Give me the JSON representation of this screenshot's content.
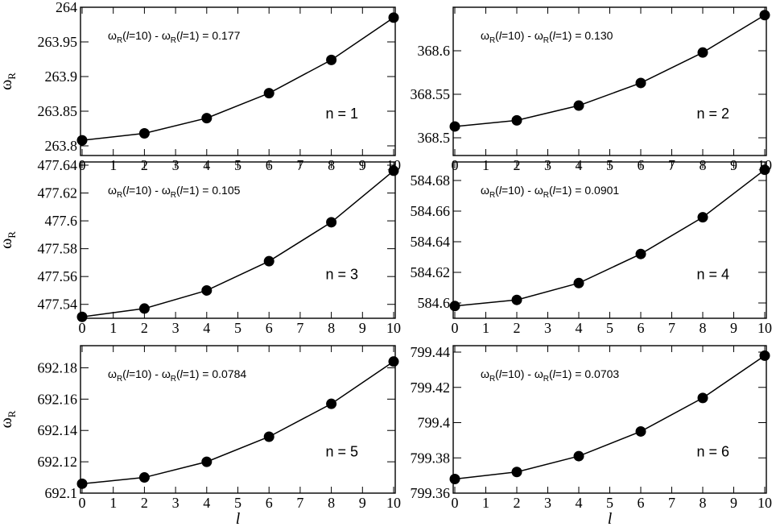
{
  "chart_data": [
    {
      "type": "line",
      "x": [
        0,
        2,
        4,
        6,
        8,
        10
      ],
      "y": [
        263.808,
        263.818,
        263.84,
        263.876,
        263.924,
        263.985
      ],
      "xlim": [
        0,
        10
      ],
      "ylim": [
        263.8,
        264
      ],
      "xticks": [
        "0",
        "1",
        "2",
        "3",
        "4",
        "5",
        "6",
        "7",
        "8",
        "9",
        "10"
      ],
      "yticks": [
        {
          "v": 263.8,
          "label": "263.8"
        },
        {
          "v": 263.85,
          "label": "263.85"
        },
        {
          "v": 263.9,
          "label": "263.9"
        },
        {
          "v": 263.95,
          "label": "263.95"
        },
        {
          "v": 264,
          "label": "264"
        }
      ],
      "ylabel": "ω",
      "ylabel_sub": "R",
      "xlabel": "",
      "annotation": {
        "pre": "ω",
        "sub1": "R",
        "arg1a": "(",
        "l1": "l",
        "arg1b": "=10) - ω",
        "sub2": "R",
        "arg2a": "(",
        "l2": "l",
        "arg2b": "=1) = 0.177"
      },
      "n_label": "n = 1"
    },
    {
      "type": "line",
      "x": [
        0,
        2,
        4,
        6,
        8,
        10
      ],
      "y": [
        368.513,
        368.52,
        368.537,
        368.563,
        368.598,
        368.641
      ],
      "xlim": [
        0,
        10
      ],
      "ylim": [
        368.5,
        368.65
      ],
      "xticks": [
        "0",
        "1",
        "2",
        "3",
        "4",
        "5",
        "6",
        "7",
        "8",
        "9",
        "10"
      ],
      "yticks": [
        {
          "v": 368.5,
          "label": "368.5"
        },
        {
          "v": 368.55,
          "label": "368.55"
        },
        {
          "v": 368.6,
          "label": "368.6"
        }
      ],
      "ylabel": "",
      "ylabel_sub": "",
      "xlabel": "",
      "annotation": {
        "pre": "ω",
        "sub1": "R",
        "arg1a": "(",
        "l1": "l",
        "arg1b": "=10) - ω",
        "sub2": "R",
        "arg2a": "(",
        "l2": "l",
        "arg2b": "=1) = 0.130"
      },
      "n_label": "n = 2"
    },
    {
      "type": "line",
      "x": [
        0,
        2,
        4,
        6,
        8,
        10
      ],
      "y": [
        477.531,
        477.537,
        477.55,
        477.571,
        477.599,
        477.636
      ],
      "xlim": [
        0,
        10
      ],
      "ylim": [
        477.53,
        477.64
      ],
      "xticks": [
        "0",
        "1",
        "2",
        "3",
        "4",
        "5",
        "6",
        "7",
        "8",
        "9",
        "10"
      ],
      "yticks": [
        {
          "v": 477.54,
          "label": "477.54"
        },
        {
          "v": 477.56,
          "label": "477.56"
        },
        {
          "v": 477.58,
          "label": "477.58"
        },
        {
          "v": 477.6,
          "label": "477.6"
        },
        {
          "v": 477.62,
          "label": "477.62"
        },
        {
          "v": 477.64,
          "label": "477.64"
        }
      ],
      "ylabel": "ω",
      "ylabel_sub": "R",
      "xlabel": "",
      "annotation": {
        "pre": "ω",
        "sub1": "R",
        "arg1a": "(",
        "l1": "l",
        "arg1b": "=10) - ω",
        "sub2": "R",
        "arg2a": "(",
        "l2": "l",
        "arg2b": "=1) = 0.105"
      },
      "n_label": "n = 3"
    },
    {
      "type": "line",
      "x": [
        0,
        2,
        4,
        6,
        8,
        10
      ],
      "y": [
        584.598,
        584.602,
        584.613,
        584.632,
        584.656,
        584.687
      ],
      "xlim": [
        0,
        10
      ],
      "ylim": [
        584.59,
        584.69
      ],
      "xticks": [
        "0",
        "1",
        "2",
        "3",
        "4",
        "5",
        "6",
        "7",
        "8",
        "9",
        "10"
      ],
      "yticks": [
        {
          "v": 584.6,
          "label": "584.6"
        },
        {
          "v": 584.62,
          "label": "584.62"
        },
        {
          "v": 584.64,
          "label": "584.64"
        },
        {
          "v": 584.66,
          "label": "584.66"
        },
        {
          "v": 584.68,
          "label": "584.68"
        }
      ],
      "ylabel": "",
      "ylabel_sub": "",
      "xlabel": "",
      "annotation": {
        "pre": "ω",
        "sub1": "R",
        "arg1a": "(",
        "l1": "l",
        "arg1b": "=10) - ω",
        "sub2": "R",
        "arg2a": "(",
        "l2": "l",
        "arg2b": "=1) = 0.0901"
      },
      "n_label": "n = 4"
    },
    {
      "type": "line",
      "x": [
        0,
        2,
        4,
        6,
        8,
        10
      ],
      "y": [
        692.106,
        692.11,
        692.12,
        692.136,
        692.157,
        692.184
      ],
      "xlim": [
        0,
        10
      ],
      "ylim": [
        692.1,
        692.19
      ],
      "xticks": [
        "0",
        "1",
        "2",
        "3",
        "4",
        "5",
        "6",
        "7",
        "8",
        "9",
        "10"
      ],
      "yticks": [
        {
          "v": 692.1,
          "label": "692.1"
        },
        {
          "v": 692.12,
          "label": "692.12"
        },
        {
          "v": 692.14,
          "label": "692.14"
        },
        {
          "v": 692.16,
          "label": "692.16"
        },
        {
          "v": 692.18,
          "label": "692.18"
        }
      ],
      "ylabel": "ω",
      "ylabel_sub": "R",
      "xlabel": "l",
      "annotation": {
        "pre": "ω",
        "sub1": "R",
        "arg1a": "(",
        "l1": "l",
        "arg1b": "=10) - ω",
        "sub2": "R",
        "arg2a": "(",
        "l2": "l",
        "arg2b": "=1) = 0.0784"
      },
      "n_label": "n = 5"
    },
    {
      "type": "line",
      "x": [
        0,
        2,
        4,
        6,
        8,
        10
      ],
      "y": [
        799.368,
        799.372,
        799.381,
        799.395,
        799.414,
        799.438
      ],
      "xlim": [
        0,
        10
      ],
      "ylim": [
        799.36,
        799.44
      ],
      "xticks": [
        "0",
        "1",
        "2",
        "3",
        "4",
        "5",
        "6",
        "7",
        "8",
        "9",
        "10"
      ],
      "yticks": [
        {
          "v": 799.36,
          "label": "799.36"
        },
        {
          "v": 799.38,
          "label": "799.38"
        },
        {
          "v": 799.4,
          "label": "799.4"
        },
        {
          "v": 799.42,
          "label": "799.42"
        },
        {
          "v": 799.44,
          "label": "799.44"
        }
      ],
      "ylabel": "",
      "ylabel_sub": "",
      "xlabel": "l",
      "annotation": {
        "pre": "ω",
        "sub1": "R",
        "arg1a": "(",
        "l1": "l",
        "arg1b": "=10) - ω",
        "sub2": "R",
        "arg2a": "(",
        "l2": "l",
        "arg2b": "=1) = 0.0703"
      },
      "n_label": "n = 6"
    }
  ]
}
